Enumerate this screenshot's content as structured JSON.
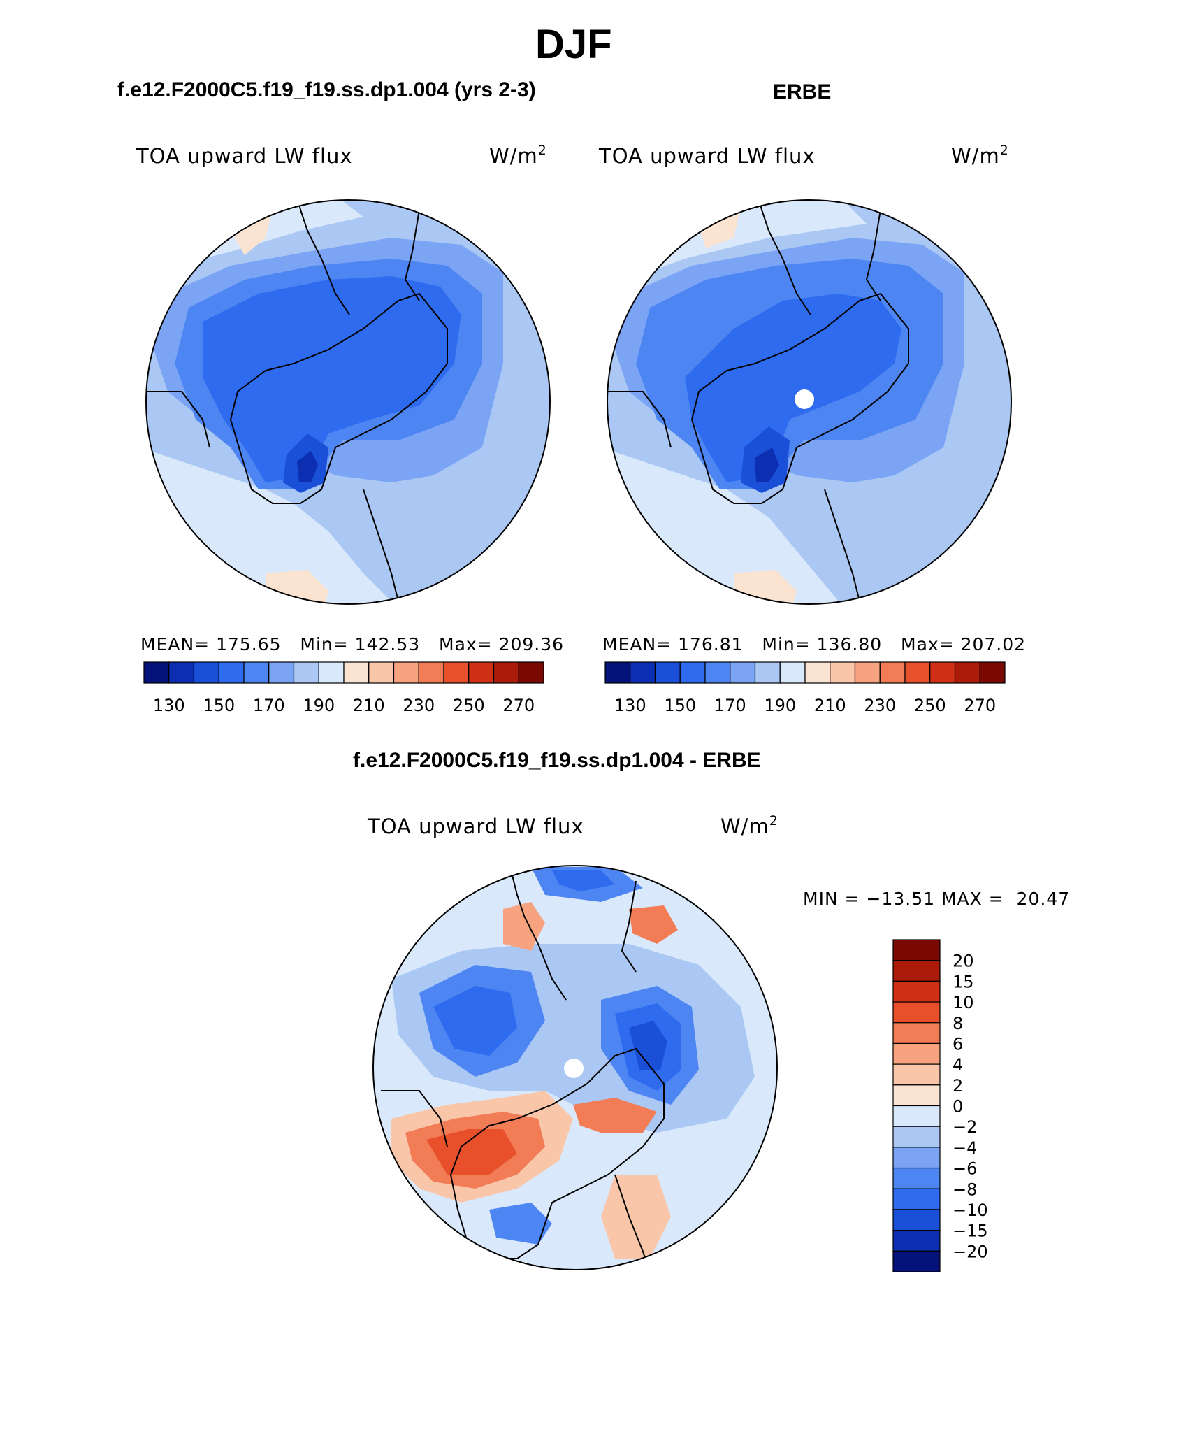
{
  "page": {
    "title": "DJF",
    "left_subtitle": "f.e12.F2000C5.f19_f19.ss.dp1.004 (yrs 2-3)",
    "right_subtitle": "ERBE",
    "bottom_subtitle": "f.e12.F2000C5.f19_f19.ss.dp1.004 - ERBE"
  },
  "colors": {
    "abs_palette": [
      "#05127a",
      "#0b2fb0",
      "#1a4fd8",
      "#2e6bef",
      "#4d86f2",
      "#7ba4f4",
      "#abc8f5",
      "#d9e9fb",
      "#fbe3d2",
      "#f9c6a9",
      "#f7a37f",
      "#f27c55",
      "#e8502c",
      "#cf3016",
      "#aa1b0a",
      "#7a0904"
    ],
    "diff_palette": [
      "#05127a",
      "#0b2fb0",
      "#1a4fd8",
      "#2e6bef",
      "#4d86f2",
      "#7ba4f4",
      "#abc8f5",
      "#d9e9fb",
      "#fbe3d2",
      "#f9c6a9",
      "#f7a37f",
      "#f27c55",
      "#e8502c",
      "#cf3016",
      "#aa1b0a",
      "#7a0904"
    ]
  },
  "panels": {
    "model": {
      "field": "TOA upward LW flux",
      "units": "W/m",
      "units_exp": "2",
      "stats": {
        "mean_label": "MEAN=",
        "mean": "175.65",
        "min_label": "Min=",
        "min": "142.53",
        "max_label": "Max=",
        "max": "209.36"
      }
    },
    "obs": {
      "field": "TOA upward LW flux",
      "units": "W/m",
      "units_exp": "2",
      "stats": {
        "mean_label": "MEAN=",
        "mean": "176.81",
        "min_label": "Min=",
        "min": "136.80",
        "max_label": "Max=",
        "max": "207.02"
      }
    },
    "diff": {
      "field": "TOA upward LW flux",
      "units": "W/m",
      "units_exp": "2",
      "minmax": "MIN = −13.51 MAX =  20.47"
    }
  },
  "chart_data": [
    {
      "type": "heatmap",
      "title": "f.e12.F2000C5.f19_f19.ss.dp1.004 (yrs 2-3)",
      "projection": "north polar stereographic",
      "field": "TOA upward LW flux",
      "units": "W/m2",
      "mean": 175.65,
      "min": 142.53,
      "max": 209.36,
      "levels": [
        130,
        140,
        150,
        160,
        170,
        180,
        190,
        200,
        210,
        220,
        230,
        240,
        250,
        260,
        270
      ],
      "colorbar_tick_labels": [
        "130",
        "150",
        "170",
        "190",
        "210",
        "230",
        "250",
        "270"
      ]
    },
    {
      "type": "heatmap",
      "title": "ERBE",
      "projection": "north polar stereographic",
      "field": "TOA upward LW flux",
      "units": "W/m2",
      "mean": 176.81,
      "min": 136.8,
      "max": 207.02,
      "levels": [
        130,
        140,
        150,
        160,
        170,
        180,
        190,
        200,
        210,
        220,
        230,
        240,
        250,
        260,
        270
      ],
      "colorbar_tick_labels": [
        "130",
        "150",
        "170",
        "190",
        "210",
        "230",
        "250",
        "270"
      ]
    },
    {
      "type": "heatmap",
      "title": "f.e12.F2000C5.f19_f19.ss.dp1.004 - ERBE",
      "projection": "north polar stereographic",
      "field": "TOA upward LW flux",
      "units": "W/m2",
      "min": -13.51,
      "max": 20.47,
      "levels": [
        -20,
        -15,
        -10,
        -8,
        -6,
        -4,
        -2,
        0,
        2,
        4,
        6,
        8,
        10,
        15,
        20
      ],
      "colorbar_tick_labels": [
        "20",
        "15",
        "10",
        "8",
        "6",
        "4",
        "2",
        "0",
        "−2",
        "−4",
        "−6",
        "−8",
        "−10",
        "−15",
        "−20"
      ]
    }
  ]
}
